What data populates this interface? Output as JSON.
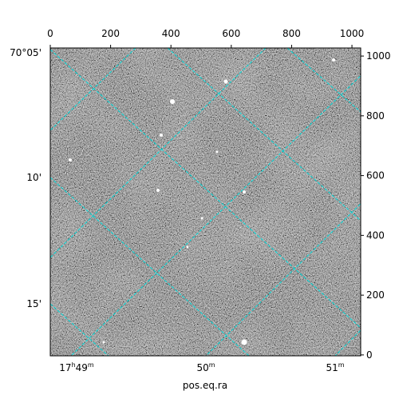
{
  "chart_data": {
    "type": "image",
    "xlabel": "pos.eq.ra",
    "xlim": [
      0,
      1029
    ],
    "xticks": [
      0,
      200,
      400,
      600,
      800,
      1000
    ],
    "ylim": [
      -3,
      1027
    ],
    "yticks": [
      0,
      200,
      400,
      600,
      800,
      1000
    ],
    "dec_tick_labels": [
      "70°05'",
      "10'",
      "15'"
    ],
    "ra_tick_labels": [
      [
        "17",
        "h",
        "49",
        "m"
      ],
      [
        "50",
        "m"
      ],
      [
        "51",
        "m"
      ]
    ],
    "grid": true,
    "grid_color": "#00d8d8"
  }
}
